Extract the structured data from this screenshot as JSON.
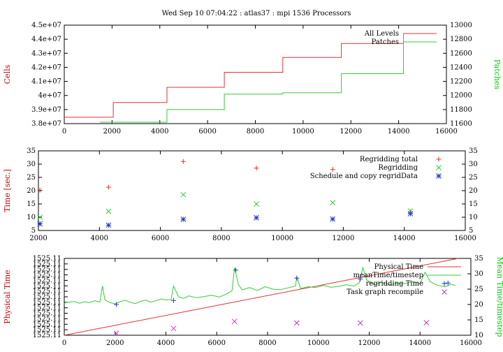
{
  "title": "Wed Sep 10 07:04:22 : atlas37 : mpi 1536 Processors",
  "chart_data": [
    {
      "type": "line",
      "xlim": [
        0,
        16000
      ],
      "xticks": [
        "0",
        "2000",
        "4000",
        "6000",
        "8000",
        "10000",
        "12000",
        "14000",
        "16000"
      ],
      "ylabel": "Cells",
      "ylim": [
        38000000,
        45000000
      ],
      "yticks": [
        "3.8e+07",
        "3.9e+07",
        "4e+07",
        "4.1e+07",
        "4.2e+07",
        "4.3e+07",
        "4.4e+07",
        "4.5e+07"
      ],
      "y2label": "Patches",
      "y2lim": [
        11600,
        13000
      ],
      "y2ticks": [
        "11600",
        "11800",
        "12000",
        "12200",
        "12400",
        "12600",
        "12800",
        "13000"
      ],
      "legend_position": "top-right",
      "series": [
        {
          "name": "All Levels",
          "axis": "left",
          "color": "#dd3333",
          "step": true,
          "x": [
            0,
            2050,
            4300,
            6700,
            9150,
            11600,
            14200
          ],
          "y": [
            38450000,
            39500000,
            40580000,
            41650000,
            42700000,
            43700000,
            43700000
          ]
        },
        {
          "name": "Patches",
          "axis": "right",
          "color": "#33cc33",
          "step": true,
          "x": [
            1500,
            4300,
            6700,
            9150,
            11600,
            14200
          ],
          "y": [
            11620,
            11800,
            12020,
            12040,
            12310,
            12880
          ]
        }
      ]
    },
    {
      "type": "scatter",
      "xlim": [
        2000,
        16000
      ],
      "xticks": [
        "2000",
        "4000",
        "6000",
        "8000",
        "10000",
        "12000",
        "14000",
        "16000"
      ],
      "ylabel": "Time [sec.]",
      "ylim": [
        5,
        35
      ],
      "yticks": [
        "5",
        "10",
        "15",
        "20",
        "25",
        "30",
        "35"
      ],
      "y2ticks": [
        "5",
        "10",
        "15",
        "20",
        "25",
        "30",
        "35"
      ],
      "legend_position": "top-right",
      "series": [
        {
          "name": "Regridding total",
          "marker": "+",
          "color": "#dd3333",
          "x": [
            2050,
            4300,
            6750,
            9150,
            11650,
            14200
          ],
          "y": [
            20.2,
            21.3,
            31.0,
            28.5,
            28.0,
            12.0
          ]
        },
        {
          "name": "Regridding",
          "marker": "x",
          "color": "#33cc33",
          "x": [
            2050,
            4300,
            6750,
            9150,
            11650,
            14200
          ],
          "y": [
            10.0,
            12.2,
            18.5,
            15.0,
            15.5,
            12.3
          ]
        },
        {
          "name": "Schedule and copy regridData",
          "marker": "*",
          "color": "#2233cc",
          "x": [
            2050,
            4300,
            6750,
            9150,
            11650,
            14200
          ],
          "y": [
            7.5,
            7.0,
            9.2,
            9.8,
            9.3,
            11.3
          ]
        }
      ]
    },
    {
      "type": "line",
      "xlim": [
        0,
        16000
      ],
      "xticks": [
        "0",
        "2000",
        "4000",
        "6000",
        "8000",
        "10000",
        "12000",
        "14000",
        "16000"
      ],
      "ylabel": "Physical Time",
      "yticks": [
        "1525.11",
        "1525.11",
        "1525.11",
        "1525.11",
        "1525.11",
        "1525.11",
        "1525.11",
        "1525.11",
        "1525.11",
        "1525.11",
        "1525.11",
        "1525.11",
        "1525.11",
        "1525.11",
        "1525.11"
      ],
      "y2label": "Mean Time/timestep",
      "y2lim": [
        10,
        35
      ],
      "y2ticks": [
        "10",
        "15",
        "20",
        "25",
        "30",
        "35"
      ],
      "legend_position": "top-right",
      "series": [
        {
          "name": "Physical Time",
          "axis": "left",
          "color": "#dd3333",
          "x": [
            0,
            15500
          ],
          "y": [
            0.0,
            1.0
          ]
        },
        {
          "name": "meanTime/timestep",
          "axis": "right",
          "color": "#33cc33",
          "x": [
            0,
            200,
            400,
            600,
            800,
            1000,
            1200,
            1400,
            1500,
            1600,
            1800,
            2000,
            2200,
            2400,
            2600,
            2800,
            3000,
            3200,
            3400,
            3600,
            3800,
            4000,
            4200,
            4300,
            4500,
            4700,
            4900,
            5200,
            5500,
            5800,
            6100,
            6400,
            6600,
            6700,
            6850,
            7000,
            7300,
            7600,
            7900,
            8200,
            8500,
            8800,
            9100,
            9150,
            9300,
            9600,
            9900,
            10200,
            10500,
            10800,
            11100,
            11400,
            11600,
            11750,
            11900,
            12200,
            12500,
            12800,
            13100,
            13400,
            13700,
            14000,
            14200,
            14400,
            14700,
            15000,
            15200,
            15400
          ],
          "y": [
            20.5,
            20.8,
            21.0,
            20.4,
            20.9,
            20.6,
            21.2,
            20.8,
            26.0,
            21.5,
            20.6,
            20.2,
            20.9,
            21.4,
            20.7,
            20.3,
            21.0,
            21.4,
            20.8,
            21.2,
            21.8,
            21.5,
            21.6,
            26.0,
            22.5,
            22.0,
            22.8,
            22.2,
            22.6,
            23.0,
            22.4,
            23.5,
            24.5,
            32.0,
            26.5,
            24.8,
            25.5,
            24.6,
            25.8,
            25.0,
            24.8,
            25.4,
            26.0,
            29.0,
            25.2,
            25.8,
            25.5,
            26.2,
            25.6,
            25.9,
            26.4,
            26.0,
            27.0,
            32.0,
            28.0,
            26.5,
            27.2,
            26.4,
            27.0,
            26.8,
            27.4,
            26.9,
            30.5,
            27.4,
            26.2,
            25.8,
            26.6,
            26.2
          ]
        },
        {
          "name": "regridding Time",
          "axis": "right",
          "marker": "+",
          "color": "#2233cc",
          "x": [
            2050,
            4300,
            6750,
            9150,
            11650,
            15100
          ],
          "y": [
            20.0,
            21.3,
            31.2,
            28.6,
            28.3,
            27.0
          ]
        },
        {
          "name": "Task graph recompile",
          "axis": "right",
          "marker": "x",
          "color": "#cc33cc",
          "x": [
            2050,
            4300,
            6700,
            9150,
            11650,
            14250
          ],
          "y": [
            10.6,
            12.2,
            14.5,
            14.0,
            14.0,
            14.1
          ]
        }
      ]
    }
  ]
}
